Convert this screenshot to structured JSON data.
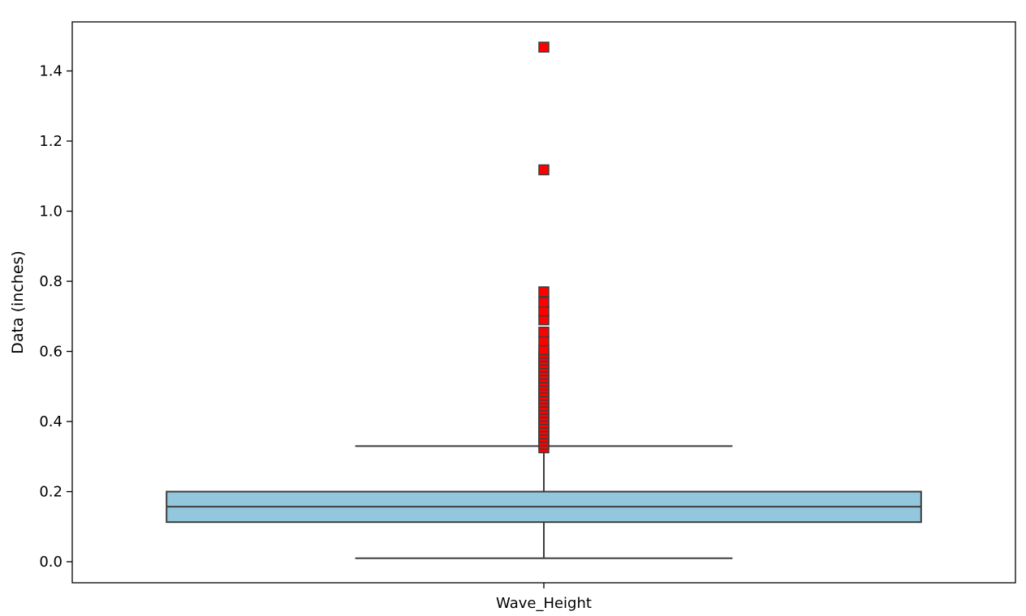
{
  "chart_data": {
    "type": "box",
    "title": "",
    "xlabel": "",
    "ylabel": "Data (inches)",
    "ylim": [
      -0.06,
      1.54
    ],
    "yticks": [
      {
        "value": 0.0,
        "label": "0.0"
      },
      {
        "value": 0.2,
        "label": "0.2"
      },
      {
        "value": 0.4,
        "label": "0.4"
      },
      {
        "value": 0.6,
        "label": "0.6"
      },
      {
        "value": 0.8,
        "label": "0.8"
      },
      {
        "value": 1.0,
        "label": "1.0"
      },
      {
        "value": 1.2,
        "label": "1.2"
      },
      {
        "value": 1.4,
        "label": "1.4"
      }
    ],
    "categories": [
      "Wave_Height"
    ],
    "boxes": [
      {
        "category": "Wave_Height",
        "whisker_low": 0.01,
        "q1": 0.113,
        "median": 0.157,
        "q3": 0.2,
        "whisker_high": 0.33,
        "outliers": [
          0.325,
          0.335,
          0.345,
          0.355,
          0.365,
          0.375,
          0.385,
          0.395,
          0.405,
          0.415,
          0.425,
          0.435,
          0.445,
          0.455,
          0.465,
          0.475,
          0.485,
          0.495,
          0.505,
          0.515,
          0.525,
          0.535,
          0.545,
          0.555,
          0.565,
          0.575,
          0.585,
          0.595,
          0.605,
          0.63,
          0.655,
          0.69,
          0.715,
          0.74,
          0.77,
          1.118,
          1.468
        ]
      }
    ],
    "colors": {
      "box_fill": "#92c7de",
      "line": "#3d3d3d",
      "outlier_fill": "#ff0000",
      "outlier_edge": "#3d3d3d"
    },
    "grid": false,
    "legend": "none"
  }
}
